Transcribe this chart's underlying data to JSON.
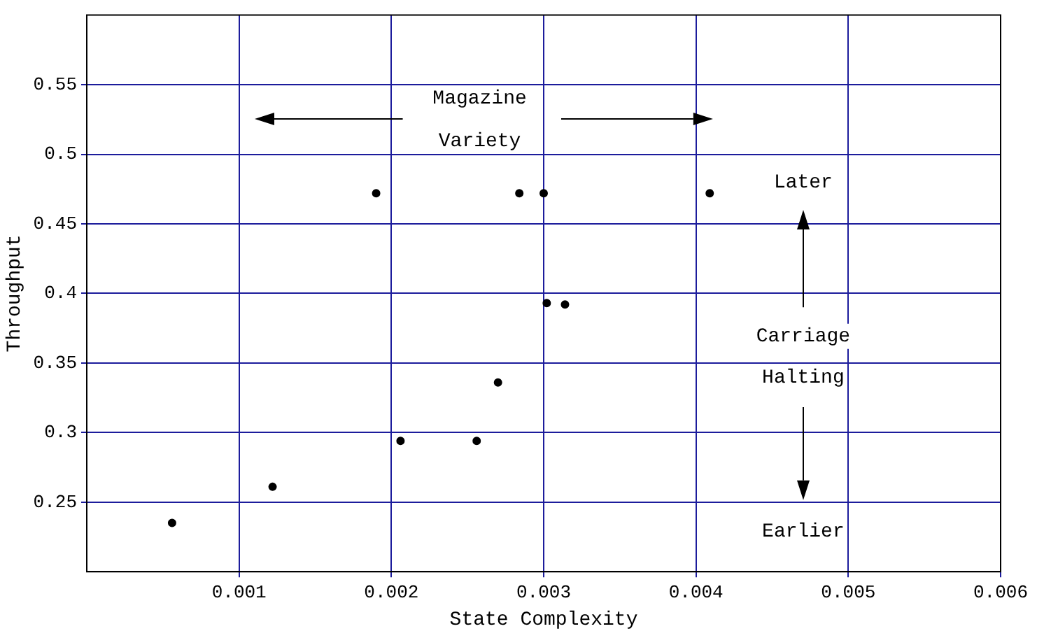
{
  "chart_data": {
    "type": "scatter",
    "xlabel": "State Complexity",
    "ylabel": "Throughput",
    "x": [
      0.00056,
      0.00122,
      0.0019,
      0.00206,
      0.00256,
      0.0027,
      0.00284,
      0.003,
      0.00302,
      0.00314,
      0.00409
    ],
    "series": [
      {
        "color": "#000000",
        "values": [
          0.235,
          0.261,
          0.472,
          0.294,
          0.294,
          0.336,
          0.472,
          0.472,
          0.393,
          0.392,
          0.472
        ]
      }
    ],
    "xlim": [
      0,
      0.006
    ],
    "xticks": [
      0.001,
      0.002,
      0.003,
      0.004,
      0.005,
      0.006
    ],
    "ylim": [
      0.2,
      0.6
    ],
    "yticks": [
      0.25,
      0.3,
      0.35,
      0.4,
      0.45,
      0.5,
      0.55
    ],
    "grid": true,
    "legend": false,
    "marker": "circle",
    "annotations": [
      "Magazine Variety",
      "Later",
      "Carriage Halting",
      "Earlier"
    ]
  }
}
